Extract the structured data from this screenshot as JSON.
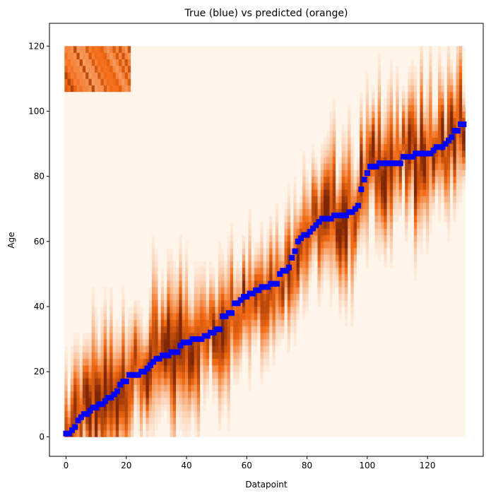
{
  "chart_data": {
    "type": "scatter",
    "title": "True (blue) vs predicted (orange)",
    "xlabel": "Datapoint",
    "ylabel": "Age",
    "xlim": [
      -5.5,
      138.5
    ],
    "ylim": [
      -6,
      127
    ],
    "xticks": [
      0,
      20,
      40,
      60,
      80,
      100,
      120
    ],
    "yticks": [
      0,
      20,
      40,
      60,
      80,
      100,
      120
    ],
    "grid": false,
    "colors": {
      "true_marker": "#0000ff",
      "heat_low": "#fff5eb",
      "heat_mid": "#f16913",
      "heat_high": "#7f2704"
    },
    "heatmap": {
      "x_range": [
        0,
        132
      ],
      "y_range": [
        0,
        120
      ]
    },
    "series": [
      {
        "points": [
          [
            0,
            1
          ],
          [
            1,
            1
          ],
          [
            2,
            2
          ],
          [
            3,
            3
          ],
          [
            4,
            5
          ],
          [
            5,
            6
          ],
          [
            6,
            7
          ],
          [
            7,
            7
          ],
          [
            8,
            8
          ],
          [
            9,
            9
          ],
          [
            10,
            9
          ],
          [
            11,
            10
          ],
          [
            12,
            10
          ],
          [
            13,
            11
          ],
          [
            14,
            12
          ],
          [
            15,
            12
          ],
          [
            16,
            13
          ],
          [
            17,
            14
          ],
          [
            18,
            16
          ],
          [
            19,
            17
          ],
          [
            20,
            17
          ],
          [
            21,
            19
          ],
          [
            22,
            19
          ],
          [
            23,
            19
          ],
          [
            24,
            19
          ],
          [
            25,
            20
          ],
          [
            26,
            20
          ],
          [
            27,
            21
          ],
          [
            28,
            22
          ],
          [
            29,
            23
          ],
          [
            30,
            24
          ],
          [
            31,
            24
          ],
          [
            32,
            25
          ],
          [
            33,
            25
          ],
          [
            34,
            25
          ],
          [
            35,
            26
          ],
          [
            36,
            26
          ],
          [
            37,
            26
          ],
          [
            38,
            28
          ],
          [
            39,
            29
          ],
          [
            40,
            29
          ],
          [
            41,
            29
          ],
          [
            42,
            30
          ],
          [
            43,
            30
          ],
          [
            44,
            30
          ],
          [
            45,
            30
          ],
          [
            46,
            31
          ],
          [
            47,
            31
          ],
          [
            48,
            32
          ],
          [
            49,
            32
          ],
          [
            50,
            33
          ],
          [
            51,
            33
          ],
          [
            52,
            37
          ],
          [
            53,
            37
          ],
          [
            54,
            38
          ],
          [
            55,
            38
          ],
          [
            56,
            41
          ],
          [
            57,
            41
          ],
          [
            58,
            42
          ],
          [
            59,
            43
          ],
          [
            60,
            43
          ],
          [
            61,
            44
          ],
          [
            62,
            44
          ],
          [
            63,
            45
          ],
          [
            64,
            45
          ],
          [
            65,
            46
          ],
          [
            66,
            46
          ],
          [
            67,
            46
          ],
          [
            68,
            47
          ],
          [
            69,
            47
          ],
          [
            70,
            47
          ],
          [
            71,
            50
          ],
          [
            72,
            51
          ],
          [
            73,
            51
          ],
          [
            74,
            52
          ],
          [
            75,
            55
          ],
          [
            76,
            57
          ],
          [
            77,
            60
          ],
          [
            78,
            61
          ],
          [
            79,
            62
          ],
          [
            80,
            62
          ],
          [
            81,
            63
          ],
          [
            82,
            64
          ],
          [
            83,
            65
          ],
          [
            84,
            66
          ],
          [
            85,
            67
          ],
          [
            86,
            67
          ],
          [
            87,
            67
          ],
          [
            88,
            67
          ],
          [
            89,
            68
          ],
          [
            90,
            68
          ],
          [
            91,
            68
          ],
          [
            92,
            68
          ],
          [
            93,
            68
          ],
          [
            94,
            69
          ],
          [
            95,
            69
          ],
          [
            96,
            70
          ],
          [
            97,
            71
          ],
          [
            98,
            76
          ],
          [
            99,
            79
          ],
          [
            100,
            81
          ],
          [
            101,
            83
          ],
          [
            102,
            83
          ],
          [
            103,
            83
          ],
          [
            104,
            84
          ],
          [
            105,
            84
          ],
          [
            106,
            84
          ],
          [
            107,
            84
          ],
          [
            108,
            84
          ],
          [
            109,
            84
          ],
          [
            110,
            84
          ],
          [
            111,
            84
          ],
          [
            112,
            86
          ],
          [
            113,
            86
          ],
          [
            114,
            86
          ],
          [
            115,
            86
          ],
          [
            116,
            87
          ],
          [
            117,
            87
          ],
          [
            118,
            87
          ],
          [
            119,
            87
          ],
          [
            120,
            87
          ],
          [
            121,
            87
          ],
          [
            122,
            88
          ],
          [
            123,
            89
          ],
          [
            124,
            89
          ],
          [
            125,
            89
          ],
          [
            126,
            90
          ],
          [
            127,
            91
          ],
          [
            128,
            92
          ],
          [
            129,
            94
          ],
          [
            130,
            94
          ],
          [
            131,
            96
          ],
          [
            132,
            96
          ]
        ]
      }
    ]
  }
}
